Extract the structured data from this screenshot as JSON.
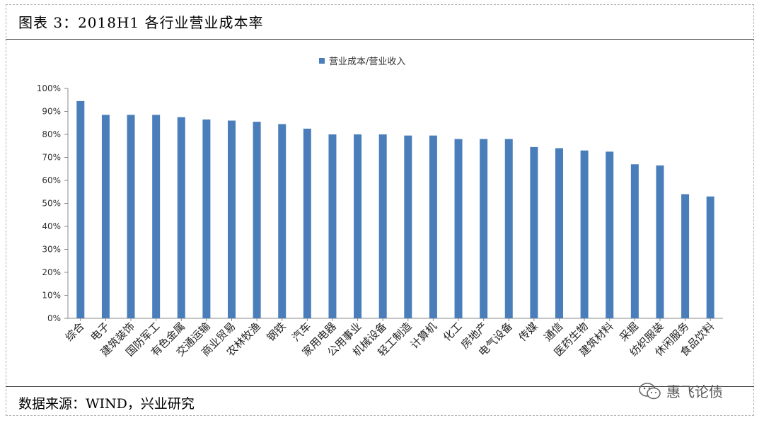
{
  "header": {
    "title": "图表 3：2018H1 各行业营业成本率"
  },
  "footer": {
    "source": "数据来源：WIND，兴业研究",
    "brand": "惠飞论债",
    "brand_icon": "wechat-icon"
  },
  "colors": {
    "bar": "#4a7ebb",
    "axis": "#888888"
  },
  "chart_data": {
    "type": "bar",
    "title": "",
    "xlabel": "",
    "ylabel": "",
    "legend": {
      "position": "top-center",
      "entries": [
        "营业成本/营业收入"
      ]
    },
    "ylim": [
      0,
      100
    ],
    "y_ticks": [
      "0%",
      "10%",
      "20%",
      "30%",
      "40%",
      "50%",
      "60%",
      "70%",
      "80%",
      "90%",
      "100%"
    ],
    "grid": false,
    "categories": [
      "综合",
      "电子",
      "建筑装饰",
      "国防军工",
      "有色金属",
      "交通运输",
      "商业贸易",
      "农林牧渔",
      "钢铁",
      "汽车",
      "家用电器",
      "公用事业",
      "机械设备",
      "轻工制造",
      "计算机",
      "化工",
      "房地产",
      "电气设备",
      "传媒",
      "通信",
      "医药生物",
      "建筑材料",
      "采掘",
      "纺织服装",
      "休闲服务",
      "食品饮料"
    ],
    "series": [
      {
        "name": "营业成本/营业收入",
        "values": [
          94.5,
          88.5,
          88.5,
          88.5,
          87.5,
          86.5,
          86,
          85.5,
          84.5,
          82.5,
          80,
          80,
          80,
          79.5,
          79.5,
          78,
          78,
          78,
          74.5,
          74,
          73,
          72.5,
          67,
          66.5,
          54,
          53
        ]
      }
    ]
  }
}
